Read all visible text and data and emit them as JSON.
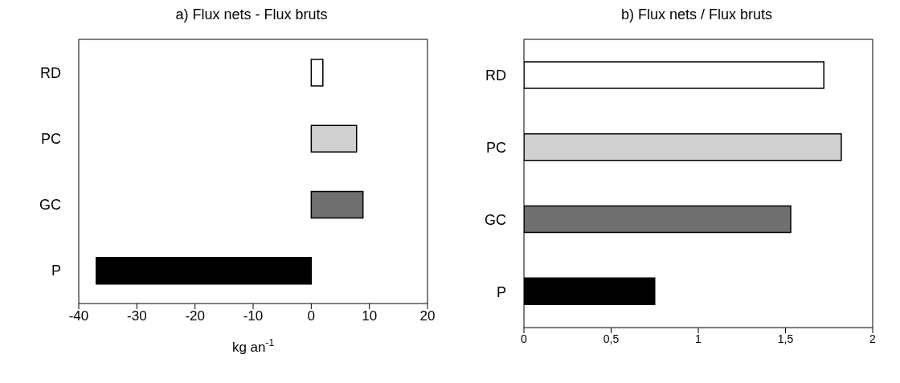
{
  "chart_data": [
    {
      "type": "bar",
      "orientation": "horizontal",
      "title": "a) Flux nets - Flux bruts",
      "xlabel": "kg an$^{-1}$",
      "categories": [
        "RD",
        "PC",
        "GC",
        "P"
      ],
      "values": [
        2,
        7.8,
        8.9,
        -37
      ],
      "colors": [
        "#ffffff",
        "#d0d0d0",
        "#707070",
        "#000000"
      ],
      "xlim": [
        -40,
        20
      ],
      "xticks": [
        -40,
        -30,
        -20,
        -10,
        0,
        10,
        20
      ],
      "grid": false,
      "legend": false
    },
    {
      "type": "bar",
      "orientation": "horizontal",
      "title": "b) Flux nets / Flux bruts",
      "categories": [
        "RD",
        "PC",
        "GC",
        "P"
      ],
      "values": [
        1.72,
        1.82,
        1.53,
        0.75
      ],
      "colors": [
        "#ffffff",
        "#d0d0d0",
        "#707070",
        "#000000"
      ],
      "xlim": [
        0,
        2
      ],
      "xticks": [
        0,
        {
          "value": 0.5,
          "label": "0,5"
        },
        1,
        {
          "value": 1.5,
          "label": "1,5"
        },
        2
      ],
      "grid": false,
      "legend": false
    }
  ]
}
